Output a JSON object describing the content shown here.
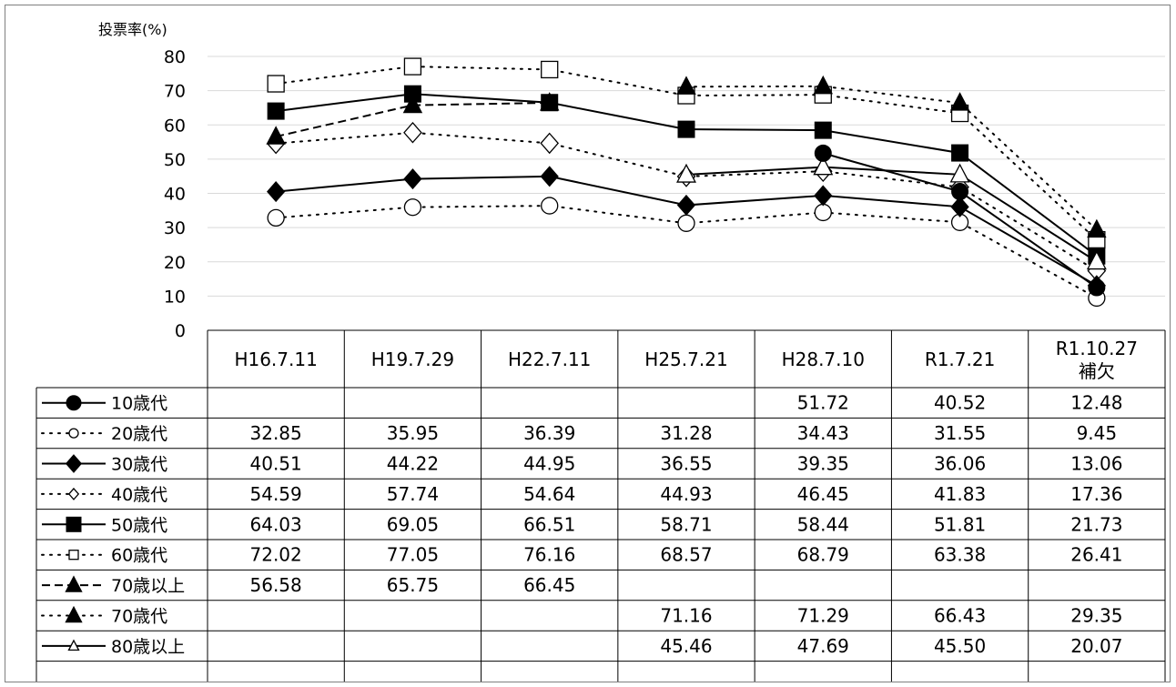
{
  "chart_data": {
    "type": "line",
    "ylabel": "投票率(%)",
    "ylim": [
      0,
      80
    ],
    "yticks": [
      "0",
      "10",
      "20",
      "30",
      "40",
      "50",
      "60",
      "70",
      "80"
    ],
    "grid": "horizontal",
    "legend": "table-rows",
    "categories": [
      "H16.7.11",
      "H19.7.29",
      "H22.7.11",
      "H25.7.21",
      "H28.7.10",
      "R1.7.21",
      "R1.10.27\n補欠"
    ],
    "category_labels": [
      [
        "H16.7.11"
      ],
      [
        "H19.7.29"
      ],
      [
        "H22.7.11"
      ],
      [
        "H25.7.21"
      ],
      [
        "H28.7.10"
      ],
      [
        "R1.7.21"
      ],
      [
        "R1.10.27",
        "補欠"
      ]
    ],
    "series": [
      {
        "name": "10歳代",
        "values": [
          null,
          null,
          null,
          null,
          51.72,
          40.52,
          12.48
        ],
        "display": [
          "",
          "",
          "",
          "",
          "51.72",
          "40.52",
          "12.48"
        ],
        "marker": "circle-filled",
        "line": "solid"
      },
      {
        "name": "20歳代",
        "values": [
          32.85,
          35.95,
          36.39,
          31.28,
          34.43,
          31.55,
          9.45
        ],
        "display": [
          "32.85",
          "35.95",
          "36.39",
          "31.28",
          "34.43",
          "31.55",
          "9.45"
        ],
        "marker": "circle-open",
        "line": "dotted"
      },
      {
        "name": "30歳代",
        "values": [
          40.51,
          44.22,
          44.95,
          36.55,
          39.35,
          36.06,
          13.06
        ],
        "display": [
          "40.51",
          "44.22",
          "44.95",
          "36.55",
          "39.35",
          "36.06",
          "13.06"
        ],
        "marker": "diamond-filled",
        "line": "solid"
      },
      {
        "name": "40歳代",
        "values": [
          54.59,
          57.74,
          54.64,
          44.93,
          46.45,
          41.83,
          17.36
        ],
        "display": [
          "54.59",
          "57.74",
          "54.64",
          "44.93",
          "46.45",
          "41.83",
          "17.36"
        ],
        "marker": "diamond-open",
        "line": "dotted"
      },
      {
        "name": "50歳代",
        "values": [
          64.03,
          69.05,
          66.51,
          58.71,
          58.44,
          51.81,
          21.73
        ],
        "display": [
          "64.03",
          "69.05",
          "66.51",
          "58.71",
          "58.44",
          "51.81",
          "21.73"
        ],
        "marker": "square-filled",
        "line": "solid"
      },
      {
        "name": "60歳代",
        "values": [
          72.02,
          77.05,
          76.16,
          68.57,
          68.79,
          63.38,
          26.41
        ],
        "display": [
          "72.02",
          "77.05",
          "76.16",
          "68.57",
          "68.79",
          "63.38",
          "26.41"
        ],
        "marker": "square-open",
        "line": "dotted"
      },
      {
        "name": "70歳以上",
        "values": [
          56.58,
          65.75,
          66.45,
          null,
          null,
          null,
          null
        ],
        "display": [
          "56.58",
          "65.75",
          "66.45",
          "",
          "",
          "",
          ""
        ],
        "marker": "triangle-filled",
        "line": "dashed"
      },
      {
        "name": "70歳代",
        "values": [
          null,
          null,
          null,
          71.16,
          71.29,
          66.43,
          29.35
        ],
        "display": [
          "",
          "",
          "",
          "71.16",
          "71.29",
          "66.43",
          "29.35"
        ],
        "marker": "triangle-filled",
        "line": "dotted"
      },
      {
        "name": "80歳以上",
        "values": [
          null,
          null,
          null,
          45.46,
          47.69,
          45.5,
          20.07
        ],
        "display": [
          "",
          "",
          "",
          "45.46",
          "47.69",
          "45.50",
          "20.07"
        ],
        "marker": "triangle-open",
        "line": "solid"
      }
    ],
    "colors": {
      "line": "#000000",
      "grid": "#d9d9d9",
      "border": "#7f7f7f",
      "background": "#ffffff"
    }
  }
}
